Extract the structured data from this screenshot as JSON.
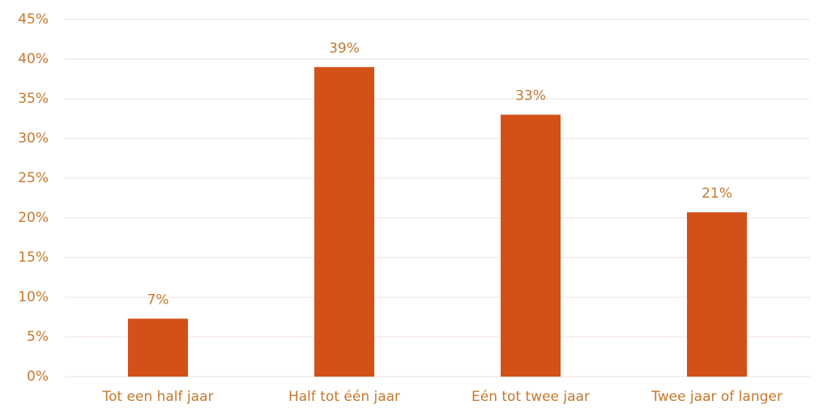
{
  "chart_data": {
    "type": "bar",
    "categories": [
      "Tot een half jaar",
      "Half tot één jaar",
      "Eén tot twee jaar",
      "Twee jaar of langer"
    ],
    "values": [
      7.3,
      39,
      33,
      20.7
    ],
    "value_labels": [
      "7%",
      "39%",
      "33%",
      "21%"
    ],
    "color": "#d35019",
    "ylim": [
      0,
      45
    ],
    "yticks": [
      {
        "value": 0,
        "label": "0%"
      },
      {
        "value": 5,
        "label": "5%"
      },
      {
        "value": 10,
        "label": "10%"
      },
      {
        "value": 15,
        "label": "15%"
      },
      {
        "value": 20,
        "label": "20%"
      },
      {
        "value": 25,
        "label": "25%"
      },
      {
        "value": 30,
        "label": "30%"
      },
      {
        "value": 35,
        "label": "35%"
      },
      {
        "value": 40,
        "label": "40%"
      },
      {
        "value": 45,
        "label": "45%"
      }
    ],
    "grid": true
  }
}
